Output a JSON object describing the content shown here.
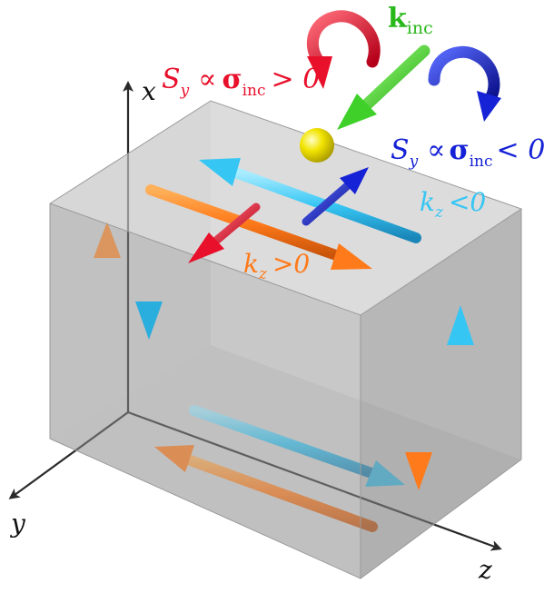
{
  "axes": {
    "x": "x",
    "y": "y",
    "z": "z"
  },
  "labels": {
    "k_inc": {
      "main": "k",
      "sub": "inc"
    },
    "spin_positive": {
      "s": "S",
      "s_sub": "y",
      "prop": "∝",
      "sigma": "σ",
      "sigma_sub": "inc",
      "rel": "> 0"
    },
    "spin_negative": {
      "s": "S",
      "s_sub": "y",
      "prop": "∝",
      "sigma": "σ",
      "sigma_sub": "inc",
      "rel": "< 0"
    },
    "kz_negative": {
      "k": "k",
      "sub": "z",
      "rel": "<0"
    },
    "kz_positive": {
      "k": "k",
      "sub": "z",
      "rel": ">0"
    }
  },
  "colors": {
    "orange": "#ff7a1a",
    "cyan": "#36c6f4",
    "red": "#e8102a",
    "blue": "#1622d6",
    "green": "#3fd12a",
    "yellow": "#f2e400",
    "box_face": "#bfbfbf",
    "axis": "#2a2a2a"
  }
}
